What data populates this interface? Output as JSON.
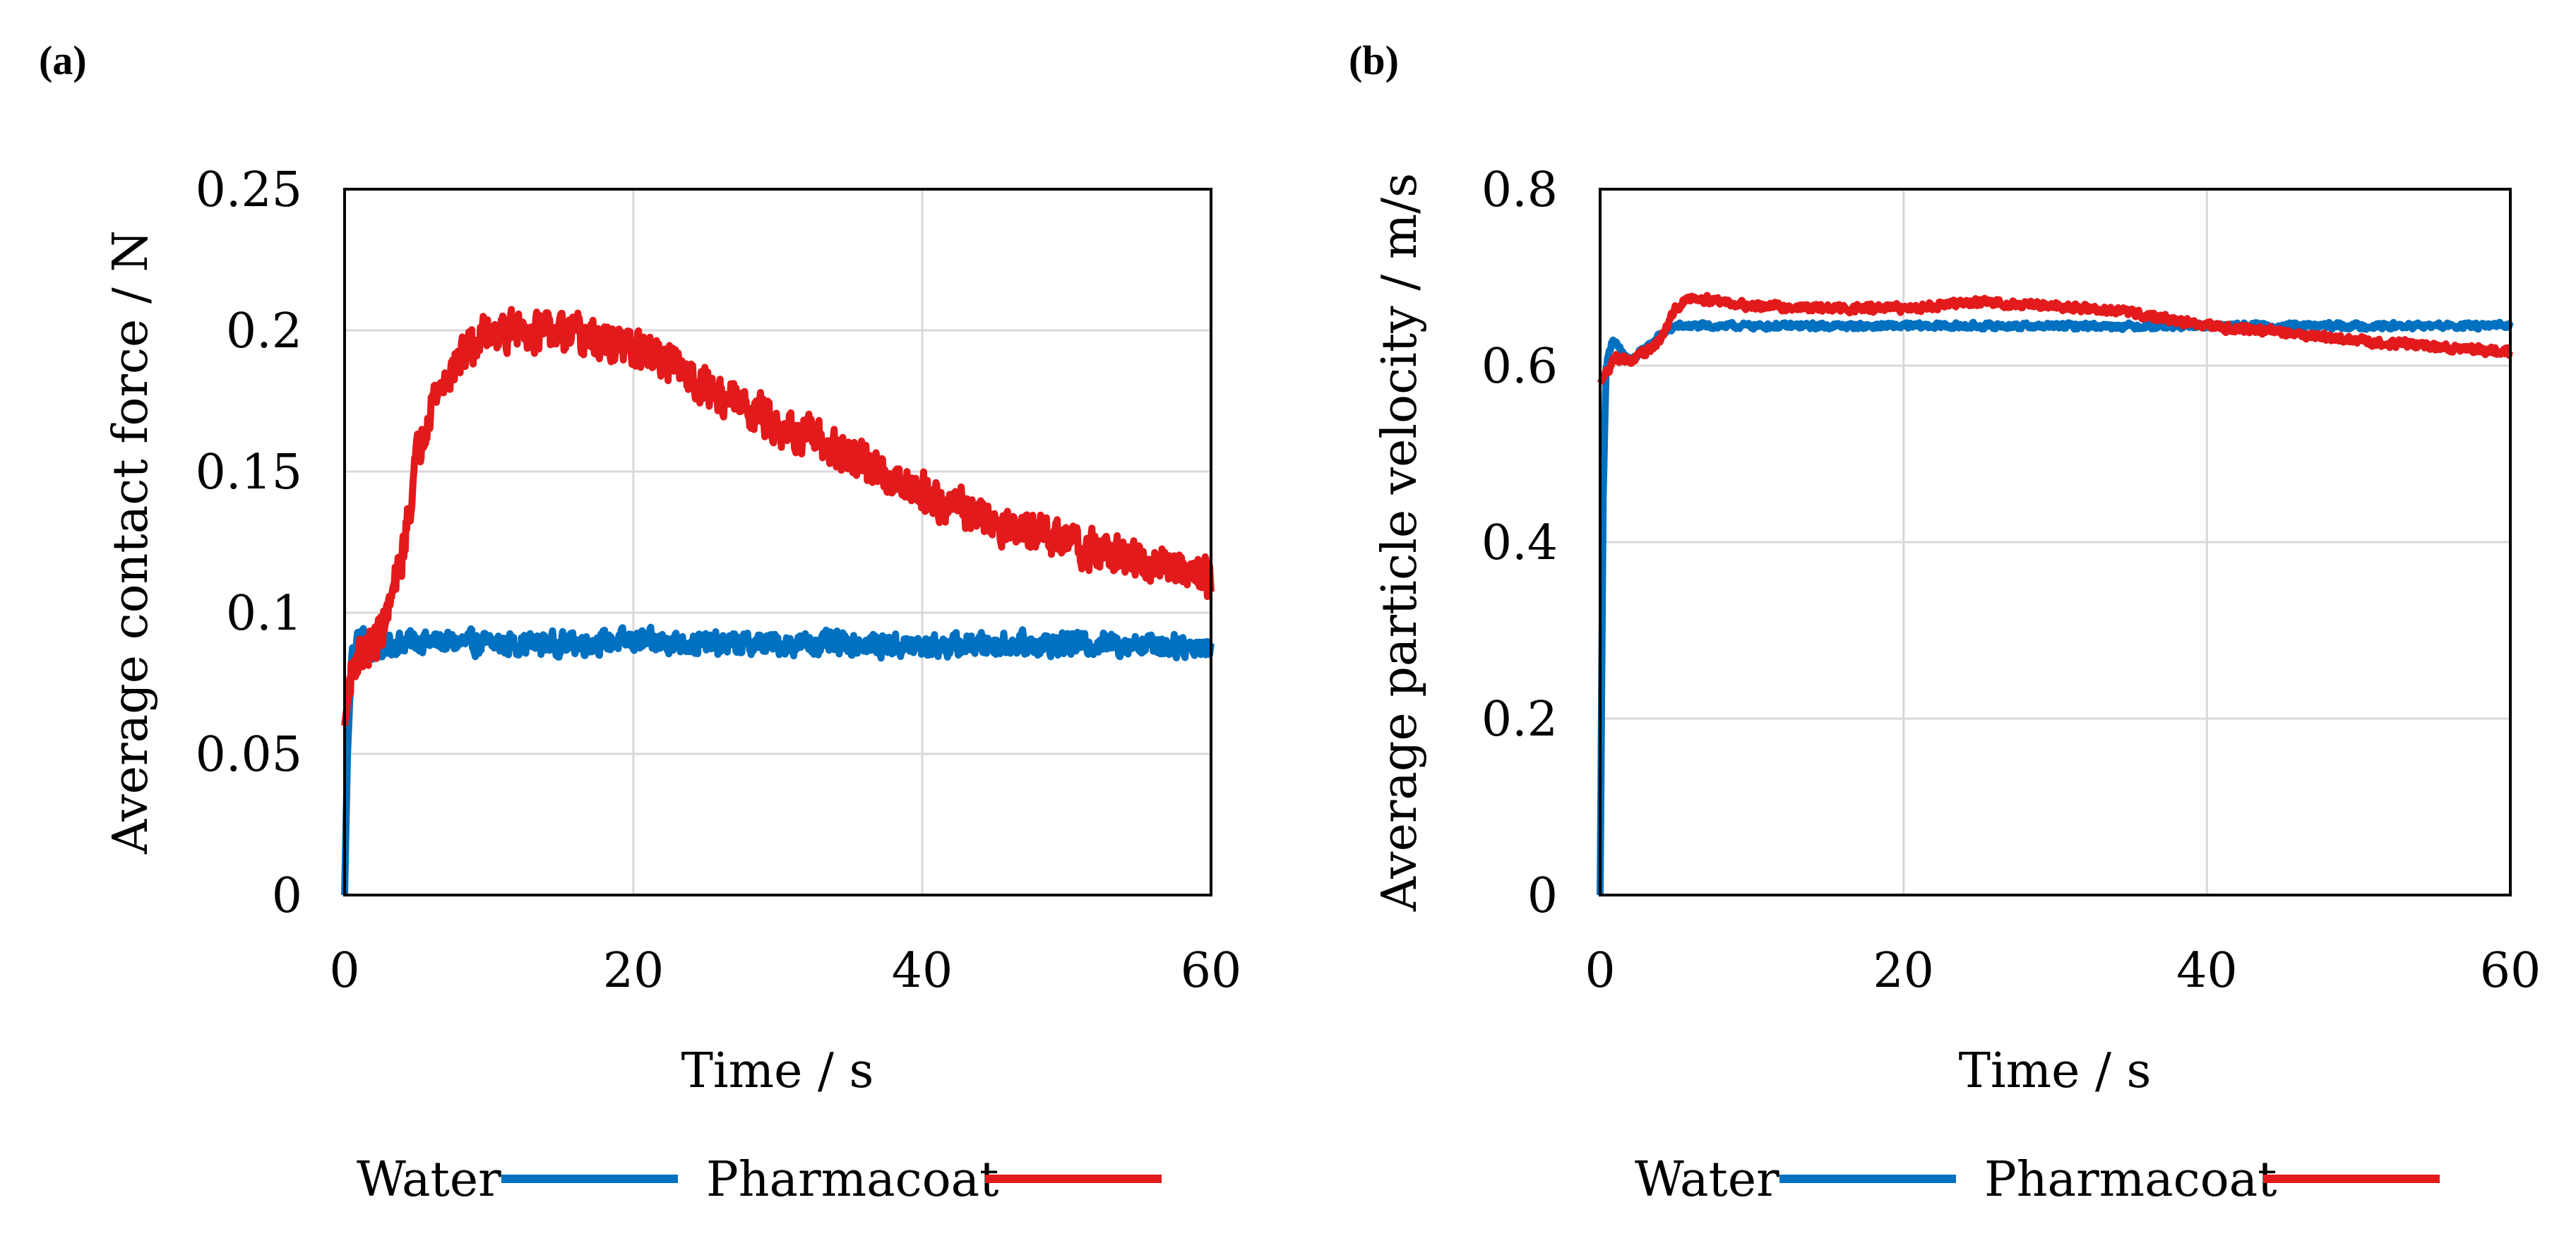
{
  "chart_data": [
    {
      "panel_label": "(a)",
      "type": "line",
      "title": "",
      "xlabel": "Time / s",
      "ylabel": "Average contact force / N",
      "xlim": [
        0,
        60
      ],
      "ylim": [
        0,
        0.25
      ],
      "xticks": [
        0,
        20,
        40,
        60
      ],
      "xtick_labels": [
        "0",
        "20",
        "40",
        "60"
      ],
      "yticks": [
        0,
        0.05,
        0.1,
        0.15,
        0.2,
        0.25
      ],
      "ytick_labels": [
        "0",
        "0.05",
        "0.1",
        "0.15",
        "0.2",
        "0.25"
      ],
      "grid": true,
      "legend_position": "bottom",
      "series": [
        {
          "name": "Water",
          "color": "#0070c0",
          "points": [
            [
              0,
              0
            ],
            [
              0.2,
              0.05
            ],
            [
              0.5,
              0.085
            ],
            [
              1,
              0.092
            ],
            [
              1.5,
              0.09
            ],
            [
              2,
              0.086
            ],
            [
              3,
              0.089
            ],
            [
              5,
              0.09
            ],
            [
              10,
              0.089
            ],
            [
              15,
              0.089
            ],
            [
              20,
              0.09
            ],
            [
              25,
              0.089
            ],
            [
              30,
              0.089
            ],
            [
              35,
              0.089
            ],
            [
              40,
              0.088
            ],
            [
              45,
              0.089
            ],
            [
              50,
              0.089
            ],
            [
              55,
              0.089
            ],
            [
              60,
              0.088
            ]
          ],
          "noise": 0.0035
        },
        {
          "name": "Pharmacoat",
          "color": "#e31a1c",
          "points": [
            [
              0,
              0.06
            ],
            [
              0.5,
              0.08
            ],
            [
              1,
              0.085
            ],
            [
              2,
              0.088
            ],
            [
              3,
              0.1
            ],
            [
              4,
              0.12
            ],
            [
              5,
              0.155
            ],
            [
              6,
              0.175
            ],
            [
              8,
              0.19
            ],
            [
              10,
              0.2
            ],
            [
              13,
              0.2
            ],
            [
              16,
              0.198
            ],
            [
              20,
              0.193
            ],
            [
              22,
              0.19
            ],
            [
              25,
              0.18
            ],
            [
              30,
              0.167
            ],
            [
              35,
              0.155
            ],
            [
              40,
              0.143
            ],
            [
              45,
              0.132
            ],
            [
              50,
              0.125
            ],
            [
              55,
              0.118
            ],
            [
              59,
              0.115
            ],
            [
              60,
              0.112
            ]
          ],
          "noise": 0.006
        }
      ]
    },
    {
      "panel_label": "(b)",
      "type": "line",
      "title": "",
      "xlabel": "Time / s",
      "ylabel": "Average particle velocity / m/s",
      "xlim": [
        0,
        60
      ],
      "ylim": [
        0,
        0.8
      ],
      "xticks": [
        0,
        20,
        40,
        60
      ],
      "xtick_labels": [
        "0",
        "20",
        "40",
        "60"
      ],
      "yticks": [
        0,
        0.2,
        0.4,
        0.6,
        0.8
      ],
      "ytick_labels": [
        "0",
        "0.2",
        "0.4",
        "0.6",
        "0.8"
      ],
      "grid": true,
      "legend_position": "bottom",
      "series": [
        {
          "name": "Water",
          "color": "#0070c0",
          "points": [
            [
              0,
              0
            ],
            [
              0.2,
              0.45
            ],
            [
              0.4,
              0.6
            ],
            [
              0.8,
              0.63
            ],
            [
              1.2,
              0.62
            ],
            [
              2,
              0.605
            ],
            [
              3,
              0.62
            ],
            [
              4,
              0.635
            ],
            [
              5,
              0.645
            ],
            [
              10,
              0.645
            ],
            [
              20,
              0.645
            ],
            [
              30,
              0.645
            ],
            [
              40,
              0.645
            ],
            [
              50,
              0.645
            ],
            [
              60,
              0.645
            ]
          ],
          "noise": 0.003
        },
        {
          "name": "Pharmacoat",
          "color": "#e31a1c",
          "points": [
            [
              0,
              0.58
            ],
            [
              1,
              0.61
            ],
            [
              2,
              0.605
            ],
            [
              3,
              0.615
            ],
            [
              4,
              0.63
            ],
            [
              5,
              0.665
            ],
            [
              6,
              0.678
            ],
            [
              10,
              0.668
            ],
            [
              15,
              0.665
            ],
            [
              20,
              0.665
            ],
            [
              25,
              0.672
            ],
            [
              30,
              0.668
            ],
            [
              35,
              0.66
            ],
            [
              40,
              0.645
            ],
            [
              45,
              0.638
            ],
            [
              50,
              0.628
            ],
            [
              55,
              0.622
            ],
            [
              60,
              0.615
            ]
          ],
          "noise": 0.004
        }
      ]
    }
  ]
}
